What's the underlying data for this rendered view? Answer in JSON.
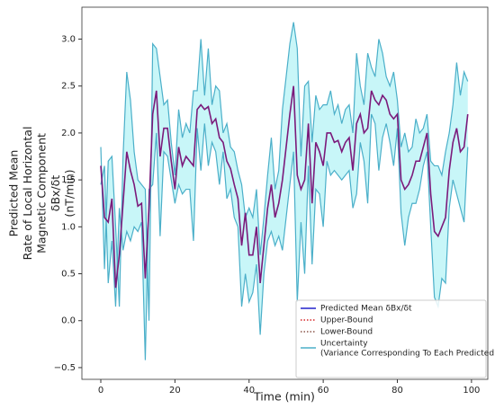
{
  "chart_data": {
    "type": "line",
    "x_label": "Time (min)",
    "y_label": [
      "Predicted Mean",
      "Rate of Local Horizontal",
      "Magnetic Component",
      "δBx/δt",
      "(nT/min)"
    ],
    "xlim": [
      -5.1,
      104.4
    ],
    "ylim": [
      -0.625,
      3.34
    ],
    "xticks": [
      0,
      20,
      40,
      60,
      80,
      100
    ],
    "yticks": [
      {
        "value": -0.5,
        "label": "−0.5"
      },
      {
        "value": 0,
        "label": "0.0"
      },
      {
        "value": 0.5,
        "label": "0.5"
      },
      {
        "value": 1,
        "label": "1.0"
      },
      {
        "value": 1.5,
        "label": "1.5"
      },
      {
        "value": 2,
        "label": "2.0"
      },
      {
        "value": 2.5,
        "label": "2.5"
      },
      {
        "value": 3,
        "label": "3.0"
      }
    ],
    "legend": "lower right",
    "x": [
      0,
      1,
      2,
      3,
      4,
      5,
      6,
      7,
      8,
      9,
      10,
      11,
      12,
      13,
      14,
      15,
      16,
      17,
      18,
      19,
      20,
      21,
      22,
      23,
      24,
      25,
      26,
      27,
      28,
      29,
      30,
      31,
      32,
      33,
      34,
      35,
      36,
      37,
      38,
      39,
      40,
      41,
      42,
      43,
      44,
      45,
      46,
      47,
      48,
      49,
      50,
      51,
      52,
      53,
      54,
      55,
      56,
      57,
      58,
      59,
      60,
      61,
      62,
      63,
      64,
      65,
      66,
      67,
      68,
      69,
      70,
      71,
      72,
      73,
      74,
      75,
      76,
      77,
      78,
      79,
      80,
      81,
      82,
      83,
      84,
      85,
      86,
      87,
      88,
      89,
      90,
      91,
      92,
      93,
      94,
      95,
      96,
      97,
      98,
      99
    ],
    "series": [
      {
        "name": "Predicted Mean δBx/δt",
        "color": "#2222cc",
        "line_color": "#7b1a7b",
        "dash": "solid",
        "values": [
          1.65,
          1.1,
          1.05,
          1.3,
          0.35,
          0.7,
          1.25,
          1.8,
          1.6,
          1.45,
          1.22,
          1.25,
          0.45,
          1.2,
          2.2,
          2.45,
          1.75,
          2.05,
          2.05,
          1.7,
          1.4,
          1.85,
          1.65,
          1.75,
          1.7,
          1.65,
          2.25,
          2.3,
          2.25,
          2.28,
          2.1,
          2.15,
          1.95,
          1.9,
          1.7,
          1.62,
          1.45,
          1.3,
          0.8,
          1.15,
          0.7,
          0.7,
          1.0,
          0.4,
          0.8,
          1.2,
          1.45,
          1.1,
          1.25,
          1.5,
          1.85,
          2.2,
          2.5,
          1.55,
          1.4,
          1.5,
          2.1,
          1.25,
          1.9,
          1.8,
          1.65,
          2.0,
          2.0,
          1.9,
          1.92,
          1.8,
          1.9,
          1.95,
          1.6,
          2.1,
          2.2,
          2.0,
          2.05,
          2.45,
          2.35,
          2.3,
          2.4,
          2.35,
          2.2,
          2.15,
          2.2,
          1.5,
          1.4,
          1.45,
          1.55,
          1.7,
          1.7,
          1.85,
          2.0,
          1.35,
          0.95,
          0.9,
          1.0,
          1.1,
          1.6,
          1.9,
          2.05,
          1.8,
          1.85,
          2.2
        ]
      },
      {
        "name": "Upper-Bound",
        "color": "#d62728",
        "line_color": "#4bafc9",
        "dash": "dotted",
        "values": [
          1.85,
          0.55,
          1.7,
          1.75,
          1.0,
          0.15,
          1.75,
          2.65,
          2.35,
          1.8,
          1.5,
          1.45,
          1.4,
          0.0,
          2.95,
          2.9,
          2.6,
          2.3,
          2.35,
          1.9,
          1.55,
          2.25,
          1.95,
          2.1,
          2.0,
          2.45,
          2.45,
          3.0,
          2.4,
          2.9,
          2.3,
          2.5,
          2.45,
          2.0,
          2.1,
          1.85,
          1.8,
          1.6,
          1.45,
          1.1,
          1.2,
          1.1,
          1.4,
          0.7,
          1.1,
          1.55,
          1.95,
          1.4,
          1.6,
          2.25,
          2.6,
          2.95,
          3.18,
          2.9,
          1.75,
          2.5,
          2.55,
          1.9,
          2.4,
          2.25,
          2.3,
          2.3,
          2.45,
          2.2,
          2.3,
          2.1,
          2.25,
          2.3,
          2.0,
          2.85,
          2.5,
          2.3,
          2.85,
          2.7,
          2.6,
          3.0,
          2.85,
          2.6,
          2.5,
          2.65,
          2.35,
          1.85,
          2.0,
          1.8,
          1.85,
          2.15,
          2.0,
          2.05,
          2.2,
          1.7,
          1.65,
          1.65,
          1.55,
          1.8,
          2.0,
          2.3,
          2.75,
          2.4,
          2.65,
          2.55
        ]
      },
      {
        "name": "Lower-Bound",
        "color": "#8c564b",
        "line_color": "#4bafc9",
        "dash": "dotted",
        "values": [
          1.45,
          1.65,
          0.4,
          0.85,
          0.15,
          1.2,
          0.75,
          0.95,
          0.85,
          1.0,
          0.95,
          1.05,
          -0.42,
          1.4,
          1.45,
          2.0,
          0.9,
          1.8,
          1.75,
          1.5,
          1.25,
          1.45,
          1.35,
          1.4,
          1.4,
          0.85,
          2.05,
          1.6,
          2.1,
          1.65,
          1.9,
          1.8,
          1.45,
          1.8,
          1.3,
          1.4,
          1.1,
          1.0,
          0.15,
          0.5,
          0.2,
          0.3,
          0.6,
          -0.15,
          0.5,
          0.85,
          0.95,
          0.8,
          0.9,
          0.75,
          1.1,
          1.45,
          1.8,
          0.2,
          1.05,
          0.5,
          1.65,
          0.6,
          1.4,
          1.35,
          1.0,
          1.7,
          1.55,
          1.6,
          1.55,
          1.5,
          1.55,
          1.6,
          1.2,
          1.35,
          1.9,
          1.7,
          1.25,
          2.2,
          2.1,
          1.6,
          1.95,
          2.1,
          1.9,
          1.65,
          2.05,
          1.15,
          0.8,
          1.1,
          1.25,
          1.25,
          1.4,
          1.65,
          1.8,
          1.0,
          0.25,
          0.15,
          0.45,
          0.4,
          1.2,
          1.5,
          1.35,
          1.2,
          1.05,
          1.85
        ]
      }
    ],
    "uncertainty": {
      "name": [
        "Uncertainty",
        "(Variance Corresponding To Each Predicted Mean)"
      ],
      "color": "#4bafc9",
      "fill": "#c8f6f8"
    }
  }
}
